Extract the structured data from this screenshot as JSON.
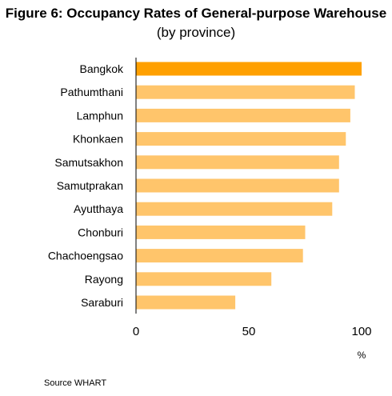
{
  "chart_data": {
    "type": "bar",
    "orientation": "horizontal",
    "title": "Figure 6: Occupancy Rates of General-purpose Warehouse",
    "subtitle": "(by province)",
    "categories": [
      "Bangkok",
      "Pathumthani",
      "Lamphun",
      "Khonkaen",
      "Samutsakhon",
      "Samutprakan",
      "Ayutthaya",
      "Chonburi",
      "Chachoengsao",
      "Rayong",
      "Saraburi"
    ],
    "values": [
      100,
      97,
      95,
      93,
      90,
      90,
      87,
      75,
      74,
      60,
      44
    ],
    "xlim": [
      0,
      100
    ],
    "xticks": [
      "0",
      "50",
      "100"
    ],
    "xunit": "%",
    "grid": false,
    "legend": "none",
    "highlight_category": "Bangkok",
    "colors": {
      "highlight": "#FFA000",
      "bar": "#FFC56B",
      "axis": "#000000"
    }
  },
  "source": "Source WHART"
}
